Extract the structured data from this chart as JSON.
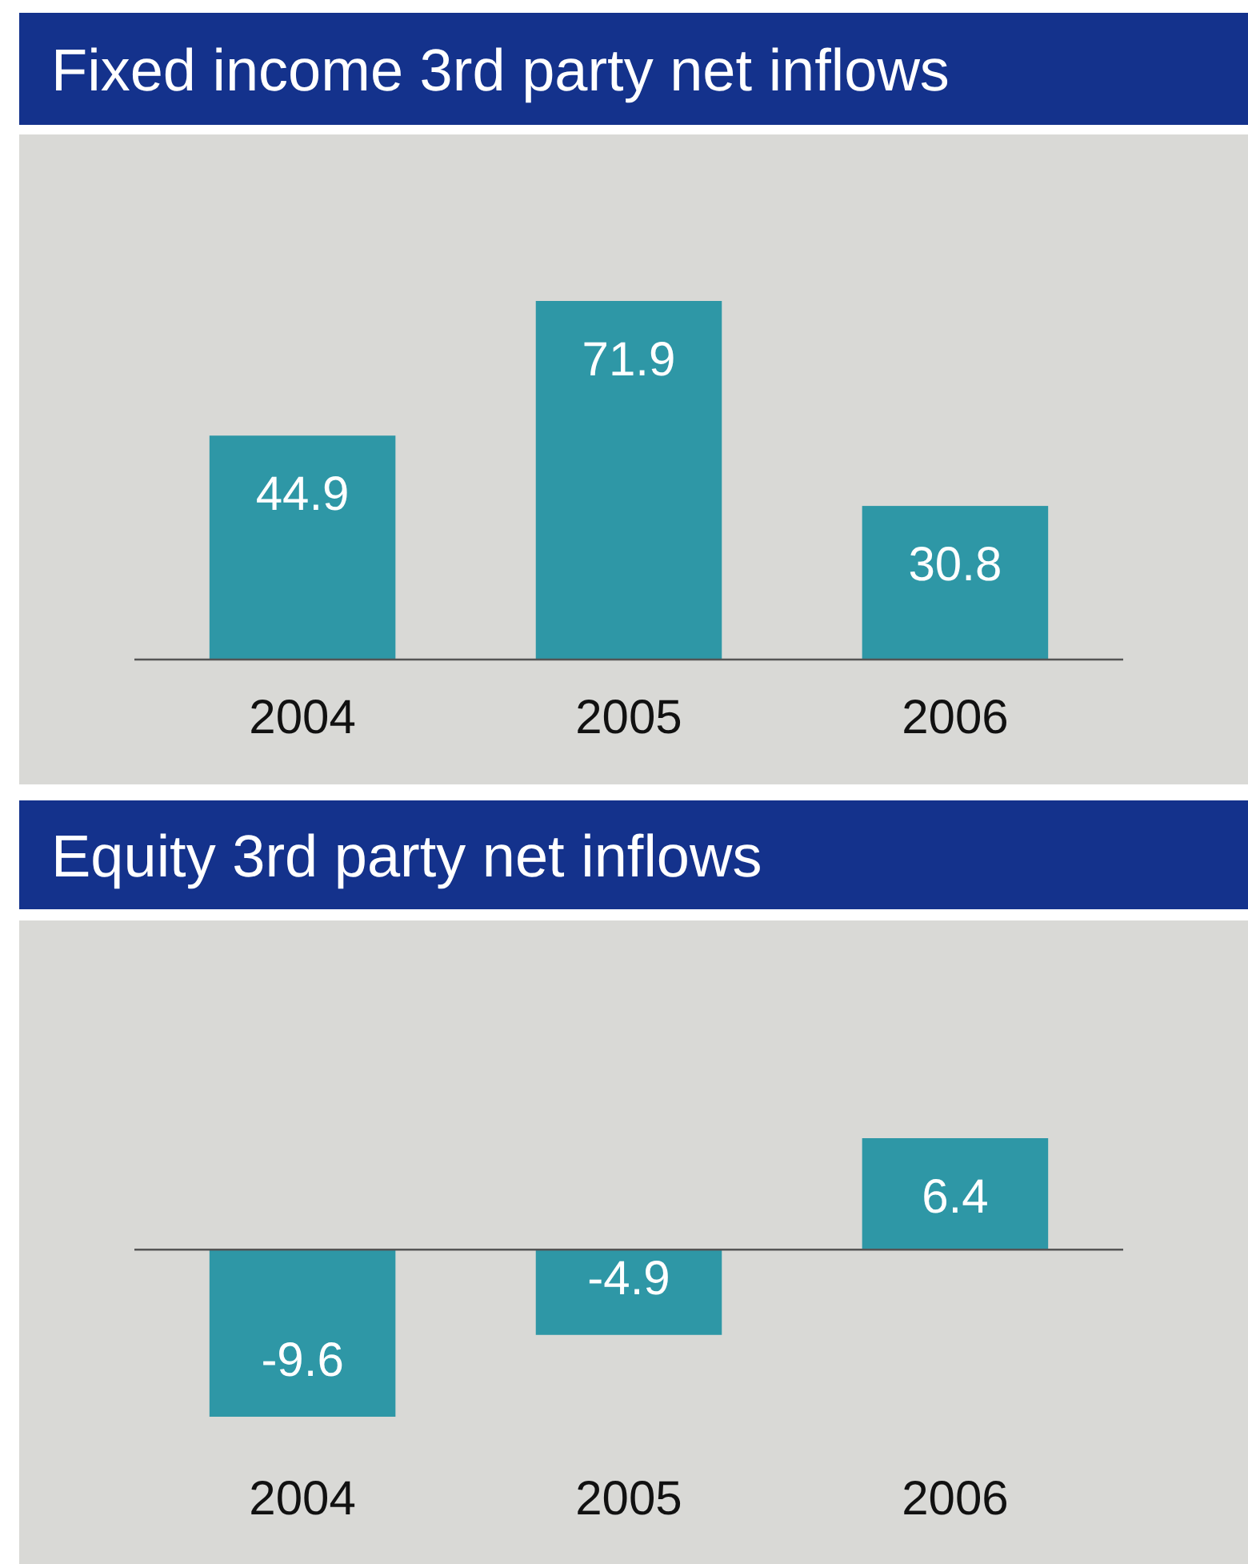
{
  "chart_data": [
    {
      "type": "bar",
      "title": "Fixed income 3rd party net inflows",
      "categories": [
        "2004",
        "2005",
        "2006"
      ],
      "values": [
        44.9,
        71.9,
        30.8
      ],
      "color": "#2e97a6",
      "data_labels": true
    },
    {
      "type": "bar",
      "title": "Equity 3rd party net inflows",
      "categories": [
        "2004",
        "2005",
        "2006"
      ],
      "values": [
        -9.6,
        -4.9,
        6.4
      ],
      "color": "#2e97a6",
      "data_labels": true
    }
  ]
}
